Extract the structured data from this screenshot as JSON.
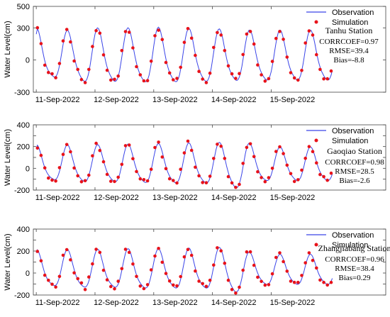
{
  "chart_data": [
    {
      "type": "line",
      "ylabel": "Water Level(cm)",
      "ylim": [
        -300,
        500
      ],
      "yticks": [
        -300,
        0,
        300,
        500
      ],
      "xlim": [
        10.95,
        16.95
      ],
      "xticks": [
        {
          "x": 11,
          "label": "11-Sep-2022"
        },
        {
          "x": 12,
          "label": "12-Sep-2022"
        },
        {
          "x": 13,
          "label": "13-Sep-2022"
        },
        {
          "x": 14,
          "label": "14-Sep-2022"
        },
        {
          "x": 15,
          "label": "15-Sep-2022"
        }
      ],
      "legend": {
        "position": "top-right",
        "entries": [
          "Observation",
          "Simulation"
        ]
      },
      "annotations": {
        "station": "Tanhu Station",
        "corrcoef": "CORRCOEF=0.97",
        "rmse": "RMSE=39.4",
        "bias": "Bias=-8.8"
      },
      "tide_model": {
        "period_days": 0.5175,
        "high_phase_day": 11.02,
        "mean": 40,
        "amplitudes": [
          270,
          215,
          255,
          270,
          275,
          270,
          275,
          275,
          280,
          275,
          270,
          270,
          265,
          260,
          255
        ]
      },
      "series": [
        {
          "name": "Observation",
          "style": "line",
          "color": "#3a44e8",
          "x": [],
          "y": []
        },
        {
          "name": "Simulation",
          "style": "points",
          "color": "#e8121a",
          "x": [],
          "y": []
        }
      ]
    },
    {
      "type": "line",
      "ylabel": "Water Level(cm)",
      "ylim": [
        -200,
        400
      ],
      "yticks": [
        -200,
        -100,
        0,
        100,
        200,
        300,
        400
      ],
      "ytick_labels": [
        "-200",
        "",
        "0",
        "",
        "200",
        "",
        "400"
      ],
      "xlim": [
        10.95,
        16.95
      ],
      "xticks": [
        {
          "x": 11,
          "label": "11-Sep-2022"
        },
        {
          "x": 12,
          "label": "12-Sep-2022"
        },
        {
          "x": 13,
          "label": "13-Sep-2022"
        },
        {
          "x": 14,
          "label": "14-Sep-2022"
        },
        {
          "x": 15,
          "label": "15-Sep-2022"
        }
      ],
      "legend": {
        "position": "top-right",
        "entries": [
          "Observation",
          "Simulation"
        ]
      },
      "annotations": {
        "station": "Gaoqiao Station",
        "corrcoef": "CORRCOEF=0.98",
        "rmse": "RMSE=28.5",
        "bias": "Bias=-2.6"
      },
      "tide_model": {
        "period_days": 0.5175,
        "high_phase_day": 11.02,
        "mean": 55,
        "amplitudes": [
          185,
          155,
          190,
          180,
          190,
          180,
          195,
          190,
          200,
          195,
          205,
          195,
          210,
          260,
          200,
          170
        ]
      },
      "series": [
        {
          "name": "Observation",
          "style": "line",
          "color": "#3a44e8",
          "x": [],
          "y": []
        },
        {
          "name": "Simulation",
          "style": "points",
          "color": "#e8121a",
          "x": [],
          "y": []
        }
      ]
    },
    {
      "type": "line",
      "ylabel": "Water Level(cm)",
      "ylim": [
        -200,
        400
      ],
      "yticks": [
        -200,
        -100,
        0,
        100,
        200,
        300,
        400
      ],
      "ytick_labels": [
        "-200",
        "",
        "0",
        "",
        "200",
        "",
        "400"
      ],
      "xlim": [
        10.95,
        16.95
      ],
      "xticks": [
        {
          "x": 11,
          "label": "11-Sep-2022"
        },
        {
          "x": 12,
          "label": "12-Sep-2022"
        },
        {
          "x": 13,
          "label": "13-Sep-2022"
        },
        {
          "x": 14,
          "label": "14-Sep-2022"
        },
        {
          "x": 15,
          "label": "15-Sep-2022"
        }
      ],
      "legend": {
        "position": "top-right",
        "entries": [
          "Observation",
          "Simulation"
        ]
      },
      "annotations": {
        "station": "Zhangjiabang Station",
        "corrcoef": "CORRCOEF=0.96",
        "rmse": "RMSE=38.4",
        "bias": "Bias=0.29"
      },
      "tide_model": {
        "period_days": 0.5175,
        "high_phase_day": 11.02,
        "mean": 40,
        "amplitudes": [
          190,
          160,
          195,
          180,
          195,
          180,
          200,
          190,
          200,
          190,
          205,
          190,
          210,
          245,
          165,
          150
        ]
      },
      "series": [
        {
          "name": "Observation",
          "style": "line",
          "color": "#3a44e8",
          "x": [],
          "y": []
        },
        {
          "name": "Simulation",
          "style": "points",
          "color": "#e8121a",
          "x": [],
          "y": []
        }
      ]
    }
  ]
}
